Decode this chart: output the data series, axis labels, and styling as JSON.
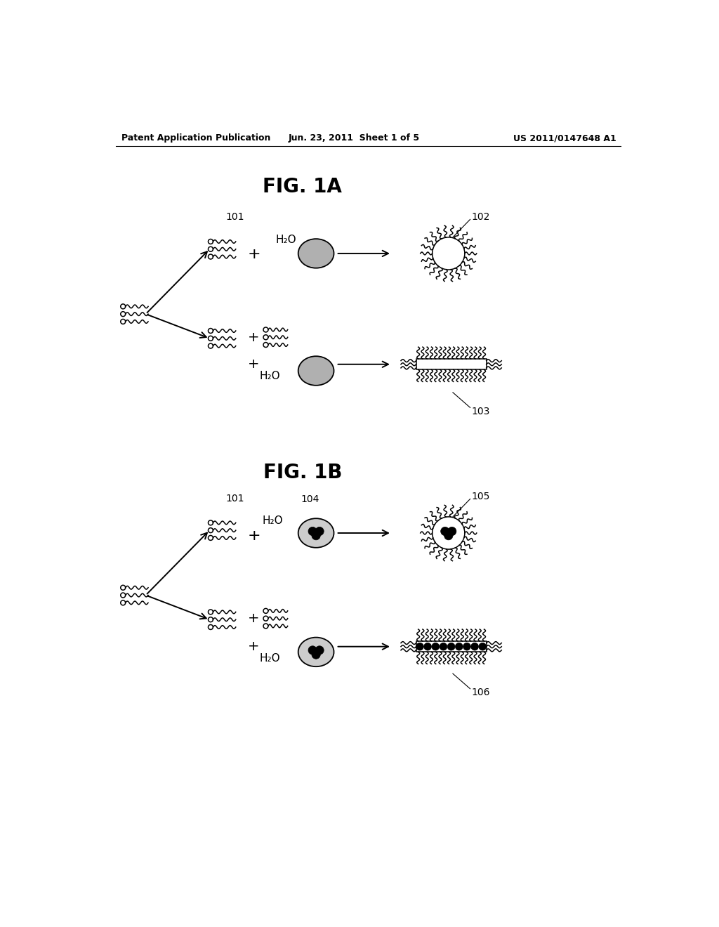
{
  "bg_color": "#ffffff",
  "header_left": "Patent Application Publication",
  "header_center": "Jun. 23, 2011  Sheet 1 of 5",
  "header_right": "US 2011/0147648 A1",
  "fig1a_title": "FIG. 1A",
  "fig1b_title": "FIG. 1B",
  "label_101": "101",
  "label_102": "102",
  "label_103": "103",
  "label_104": "104",
  "label_105": "105",
  "label_106": "106",
  "h2o_label": "H₂O"
}
